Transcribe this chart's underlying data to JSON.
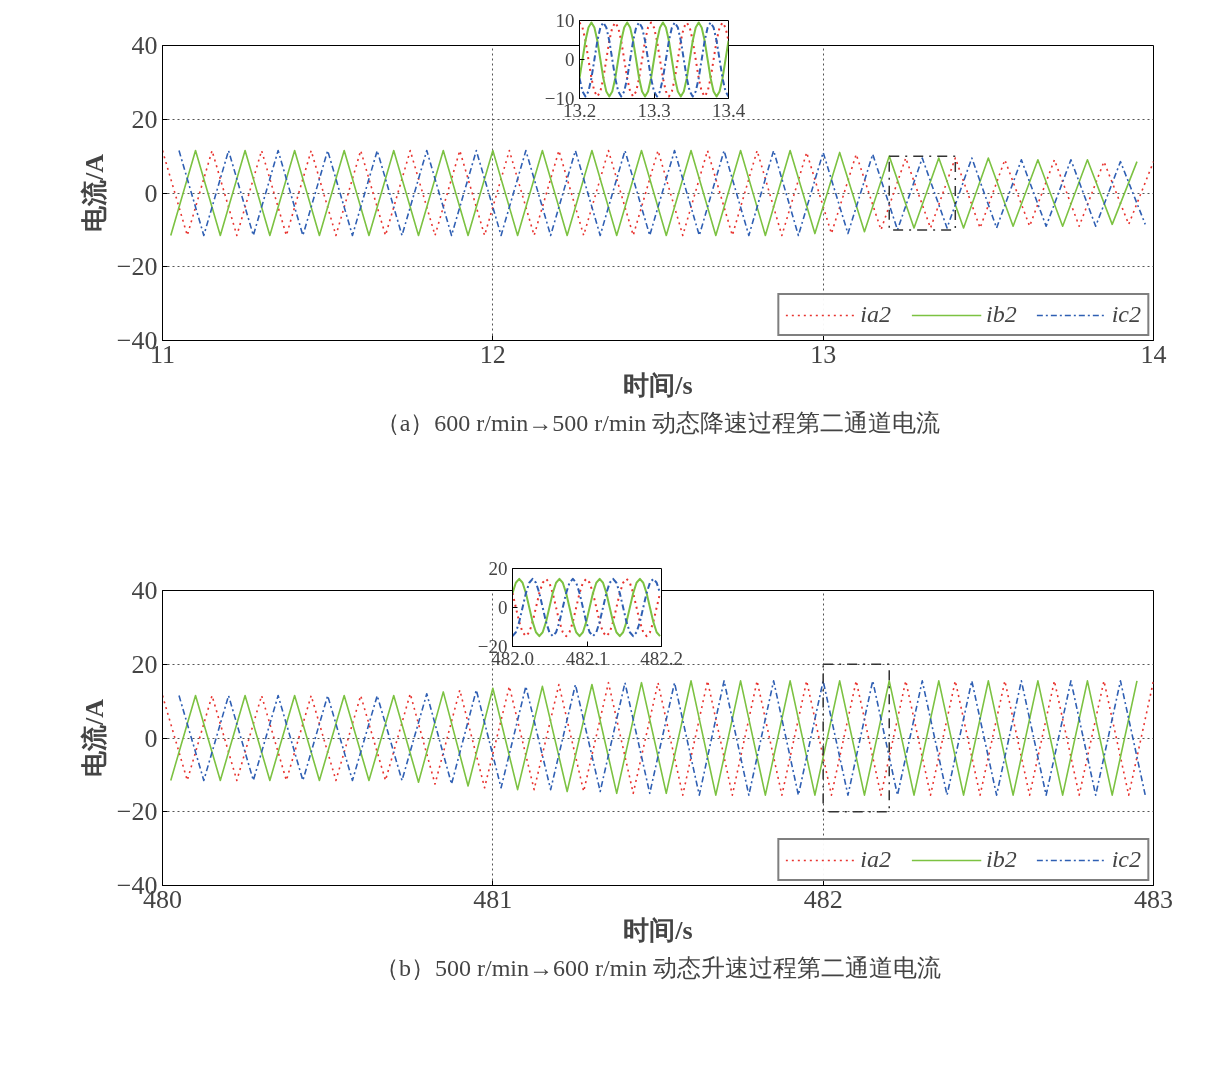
{
  "chart_data": [
    {
      "type": "line",
      "xlabel": "时间/s",
      "ylabel": "电流/A",
      "annotations": [
        "（a）600 r/min→500 r/min 动态降速过程第二通道电流"
      ],
      "xlim": [
        11,
        14
      ],
      "ylim": [
        -40,
        40
      ],
      "xticks": [
        11,
        12,
        13,
        14
      ],
      "yticks": [
        -40,
        -20,
        0,
        20,
        40
      ],
      "grid": true,
      "legend": "bottom right",
      "series": [
        {
          "name": "ia2",
          "color": "#e8332f",
          "line_style": "dotted",
          "x": [
            11.0,
            11.075,
            11.15,
            11.225,
            11.3,
            11.375,
            11.45,
            11.525,
            11.6,
            11.675,
            11.75,
            11.825,
            11.9,
            11.975,
            12.05,
            12.125,
            12.2,
            12.275,
            12.35,
            12.425,
            12.5,
            12.575,
            12.65,
            12.725,
            12.8,
            12.875,
            12.95,
            13.025,
            13.1,
            13.175,
            13.25,
            13.325,
            13.4,
            13.475,
            13.55,
            13.625,
            13.7,
            13.775,
            13.85,
            13.925,
            14.0
          ],
          "values": [
            11.5,
            -11.5,
            11.5,
            -11.5,
            11.5,
            -11.5,
            11.5,
            -11.5,
            11.5,
            -11.5,
            11.5,
            -11.5,
            11.5,
            -11.5,
            11.5,
            -11.5,
            11.5,
            -11.5,
            11.5,
            -11.5,
            11.5,
            -11.5,
            11.5,
            -11.5,
            11.5,
            -11.5,
            11,
            -11,
            10.5,
            -10,
            9.5,
            -9.5,
            9.5,
            -9.5,
            9,
            -9,
            9,
            -9,
            8.5,
            -8.5,
            8.5
          ]
        },
        {
          "name": "ib2",
          "color": "#7cc242",
          "line_style": "solid",
          "x": [
            11.025,
            11.1,
            11.175,
            11.25,
            11.325,
            11.4,
            11.475,
            11.55,
            11.625,
            11.7,
            11.775,
            11.85,
            11.925,
            12.0,
            12.075,
            12.15,
            12.225,
            12.3,
            12.375,
            12.45,
            12.525,
            12.6,
            12.675,
            12.75,
            12.825,
            12.9,
            12.975,
            13.05,
            13.125,
            13.2,
            13.275,
            13.35,
            13.425,
            13.5,
            13.575,
            13.65,
            13.725,
            13.8,
            13.875,
            13.95
          ],
          "values": [
            -11.5,
            11.5,
            -11.5,
            11.5,
            -11.5,
            11.5,
            -11.5,
            11.5,
            -11.5,
            11.5,
            -11.5,
            11.5,
            -11.5,
            11.5,
            -11.5,
            11.5,
            -11.5,
            11.5,
            -11.5,
            11.5,
            -11.5,
            11.5,
            -11.5,
            11.5,
            -11.5,
            11.5,
            -11,
            11,
            -10.5,
            10,
            -9.5,
            9.5,
            -9.5,
            9.5,
            -9,
            9,
            -9,
            9,
            -8.5,
            8.5
          ]
        },
        {
          "name": "ic2",
          "color": "#2f5fb3",
          "line_style": "dashed",
          "x": [
            11.05,
            11.125,
            11.2,
            11.275,
            11.35,
            11.425,
            11.5,
            11.575,
            11.65,
            11.725,
            11.8,
            11.875,
            11.95,
            12.025,
            12.1,
            12.175,
            12.25,
            12.325,
            12.4,
            12.475,
            12.55,
            12.625,
            12.7,
            12.775,
            12.85,
            12.925,
            13.0,
            13.075,
            13.15,
            13.225,
            13.3,
            13.375,
            13.45,
            13.525,
            13.6,
            13.675,
            13.75,
            13.825,
            13.9,
            13.975
          ],
          "values": [
            11.5,
            -11.5,
            11.5,
            -11.5,
            11.5,
            -11.5,
            11.5,
            -11.5,
            11.5,
            -11.5,
            11.5,
            -11.5,
            11.5,
            -11.5,
            11.5,
            -11.5,
            11.5,
            -11.5,
            11.5,
            -11.5,
            11.5,
            -11.5,
            11.5,
            -11.5,
            11.5,
            -11.5,
            11,
            -11,
            10.5,
            -10,
            9.5,
            -9.5,
            9.5,
            -9.5,
            9,
            -9,
            9,
            -9,
            8.5,
            -8.5
          ]
        }
      ]
    },
    {
      "type": "line",
      "xlim": [
        13.2,
        13.4
      ],
      "ylim": [
        -10,
        10
      ],
      "xticks": [
        13.2,
        13.3,
        13.4
      ],
      "yticks": [
        -10,
        0,
        10
      ],
      "x": [
        13.2,
        13.204,
        13.208,
        13.212,
        13.216,
        13.22,
        13.224,
        13.228,
        13.232,
        13.236,
        13.24,
        13.244,
        13.248,
        13.252,
        13.256,
        13.26,
        13.264,
        13.268,
        13.272,
        13.276,
        13.28,
        13.284,
        13.288,
        13.292,
        13.296,
        13.3,
        13.304,
        13.308,
        13.312,
        13.316,
        13.32,
        13.324,
        13.328,
        13.332,
        13.336,
        13.34,
        13.344,
        13.348,
        13.352,
        13.356,
        13.36,
        13.364,
        13.368,
        13.372,
        13.376,
        13.38,
        13.384,
        13.388,
        13.392,
        13.396,
        13.4
      ],
      "series": [
        {
          "color": "#e8332f",
          "line_style": "dotted",
          "values": [
            9.5,
            8.2,
            4.8,
            0,
            -4.8,
            -8.2,
            -9.5,
            -8.2,
            -4.8,
            0,
            4.8,
            8.2,
            9.5,
            8.2,
            4.8,
            0,
            -4.8,
            -8.2,
            -9.5,
            -8.2,
            -4.8,
            0,
            4.8,
            8.2,
            9.5,
            8.2,
            4.8,
            0,
            -4.8,
            -8.2,
            -9.5,
            -8.2,
            -4.8,
            0,
            4.8,
            8.2,
            9.5,
            8.2,
            4.8,
            0,
            -4.8,
            -8.2,
            -9.5,
            -8.2,
            -4.8,
            0,
            4.8,
            8.2,
            9.5,
            8.2,
            4.8
          ]
        },
        {
          "color": "#7cc242",
          "line_style": "solid",
          "values": [
            -4.8,
            0,
            4.8,
            8.2,
            9.5,
            8.2,
            4.8,
            0,
            -4.8,
            -8.2,
            -9.5,
            -8.2,
            -4.8,
            0,
            4.8,
            8.2,
            9.5,
            8.2,
            4.8,
            0,
            -4.8,
            -8.2,
            -9.5,
            -8.2,
            -4.8,
            0,
            4.8,
            8.2,
            9.5,
            8.2,
            4.8,
            0,
            -4.8,
            -8.2,
            -9.5,
            -8.2,
            -4.8,
            0,
            4.8,
            8.2,
            9.5,
            8.2,
            4.8,
            0,
            -4.8,
            -8.2,
            -9.5,
            -8.2,
            -4.8,
            0,
            4.8
          ]
        },
        {
          "color": "#2f5fb3",
          "line_style": "dashed",
          "values": [
            -4.8,
            -8.2,
            -9.5,
            -8.2,
            -4.8,
            0,
            4.8,
            8.2,
            9.5,
            8.2,
            4.8,
            0,
            -4.8,
            -8.2,
            -9.5,
            -8.2,
            -4.8,
            0,
            4.8,
            8.2,
            9.5,
            8.2,
            4.8,
            0,
            -4.8,
            -8.2,
            -9.5,
            -8.2,
            -4.8,
            0,
            4.8,
            8.2,
            9.5,
            8.2,
            4.8,
            0,
            -4.8,
            -8.2,
            -9.5,
            -8.2,
            -4.8,
            0,
            4.8,
            8.2,
            9.5,
            8.2,
            4.8,
            0,
            -4.8,
            -8.2,
            -9.5
          ]
        }
      ]
    },
    {
      "type": "line",
      "xlabel": "时间/s",
      "ylabel": "电流/A",
      "annotations": [
        "（b）500 r/min→600 r/min 动态升速过程第二通道电流"
      ],
      "xlim": [
        480,
        483
      ],
      "ylim": [
        -40,
        40
      ],
      "xticks": [
        480,
        481,
        482,
        483
      ],
      "yticks": [
        -40,
        -20,
        0,
        20,
        40
      ],
      "grid": true,
      "legend": "bottom right",
      "series": [
        {
          "name": "ia2",
          "color": "#e8332f",
          "line_style": "dotted",
          "x": [
            480.0,
            480.075,
            480.15,
            480.225,
            480.3,
            480.375,
            480.45,
            480.525,
            480.6,
            480.675,
            480.75,
            480.825,
            480.9,
            480.975,
            481.05,
            481.125,
            481.2,
            481.275,
            481.35,
            481.425,
            481.5,
            481.575,
            481.65,
            481.725,
            481.8,
            481.875,
            481.95,
            482.025,
            482.1,
            482.175,
            482.25,
            482.325,
            482.4,
            482.475,
            482.55,
            482.625,
            482.7,
            482.775,
            482.85,
            482.925,
            483.0
          ],
          "values": [
            11.5,
            -11.5,
            11.5,
            -11.5,
            11.5,
            -11.5,
            11.5,
            -11.5,
            11.5,
            -11.5,
            12,
            -12.5,
            13,
            -13.5,
            14,
            -14,
            14.5,
            -14.5,
            15,
            -15,
            15,
            -15.5,
            15.5,
            -15.5,
            15.5,
            -15.5,
            15.5,
            -15.5,
            15.5,
            -15.5,
            15.5,
            -15.5,
            15.5,
            -15.5,
            15.5,
            -15.5,
            15.5,
            -15.5,
            15.5,
            -15.5,
            15.5
          ]
        },
        {
          "name": "ib2",
          "color": "#7cc242",
          "line_style": "solid",
          "x": [
            480.025,
            480.1,
            480.175,
            480.25,
            480.325,
            480.4,
            480.475,
            480.55,
            480.625,
            480.7,
            480.775,
            480.85,
            480.925,
            481.0,
            481.075,
            481.15,
            481.225,
            481.3,
            481.375,
            481.45,
            481.525,
            481.6,
            481.675,
            481.75,
            481.825,
            481.9,
            481.975,
            482.05,
            482.125,
            482.2,
            482.275,
            482.35,
            482.425,
            482.5,
            482.575,
            482.65,
            482.725,
            482.8,
            482.875,
            482.95
          ],
          "values": [
            -11.5,
            11.5,
            -11.5,
            11.5,
            -11.5,
            11.5,
            -11.5,
            11.5,
            -11.5,
            11.5,
            -12,
            12.5,
            -13,
            13.5,
            -14,
            14,
            -14.5,
            14.5,
            -15,
            15,
            -15,
            15.5,
            -15.5,
            15.5,
            -15.5,
            15.5,
            -15.5,
            15.5,
            -15.5,
            15.5,
            -15.5,
            15.5,
            -15.5,
            15.5,
            -15.5,
            15.5,
            -15.5,
            15.5,
            -15.5,
            15.5
          ]
        },
        {
          "name": "ic2",
          "color": "#2f5fb3",
          "line_style": "dashed",
          "x": [
            480.05,
            480.125,
            480.2,
            480.275,
            480.35,
            480.425,
            480.5,
            480.575,
            480.65,
            480.725,
            480.8,
            480.875,
            480.95,
            481.025,
            481.1,
            481.175,
            481.25,
            481.325,
            481.4,
            481.475,
            481.55,
            481.625,
            481.7,
            481.775,
            481.85,
            481.925,
            482.0,
            482.075,
            482.15,
            482.225,
            482.3,
            482.375,
            482.45,
            482.525,
            482.6,
            482.675,
            482.75,
            482.825,
            482.9,
            482.975
          ],
          "values": [
            11.5,
            -11.5,
            11.5,
            -11.5,
            11.5,
            -11.5,
            11.5,
            -11.5,
            11.5,
            -11.5,
            12,
            -12.5,
            13,
            -13.5,
            14,
            -14,
            14.5,
            -14.5,
            15,
            -15,
            15,
            -15.5,
            15.5,
            -15.5,
            15.5,
            -15.5,
            15.5,
            -15.5,
            15.5,
            -15.5,
            15.5,
            -15.5,
            15.5,
            -15.5,
            15.5,
            -15.5,
            15.5,
            -15.5,
            15.5,
            -15.5
          ]
        }
      ]
    },
    {
      "type": "line",
      "xlim": [
        482.0,
        482.2
      ],
      "ylim": [
        -20,
        20
      ],
      "xticks": [
        {
          "value": 482.0,
          "label": "482.0"
        },
        482.1,
        482.2
      ],
      "yticks": [
        -20,
        0,
        20
      ],
      "x": [
        482.0,
        482.0045,
        482.009,
        482.0135,
        482.018,
        482.0225,
        482.027,
        482.0315,
        482.036,
        482.0405,
        482.045,
        482.0495,
        482.054,
        482.0585,
        482.063,
        482.0675,
        482.072,
        482.0765,
        482.081,
        482.0855,
        482.09,
        482.0945,
        482.099,
        482.1035,
        482.108,
        482.1125,
        482.117,
        482.1215,
        482.126,
        482.1305,
        482.135,
        482.1395,
        482.144,
        482.1485,
        482.153,
        482.1575,
        482.162,
        482.1665,
        482.171,
        482.1755,
        482.18,
        482.1845,
        482.189,
        482.1935,
        482.198
      ],
      "series": [
        {
          "color": "#e8332f",
          "line_style": "dotted",
          "values": [
            7.4,
            0,
            -7.4,
            -12.7,
            -14.7,
            -12.7,
            -7.4,
            0,
            7.4,
            12.7,
            14.7,
            12.7,
            7.4,
            0,
            -7.4,
            -12.7,
            -14.7,
            -12.7,
            -7.4,
            0,
            7.4,
            12.7,
            14.7,
            12.7,
            7.4,
            0,
            -7.4,
            -12.7,
            -14.7,
            -12.7,
            -7.4,
            0,
            7.4,
            12.7,
            14.7,
            12.7,
            7.4,
            0,
            -7.4,
            -12.7,
            -14.7,
            -12.7,
            -7.4,
            0,
            7.4
          ]
        },
        {
          "color": "#7cc242",
          "line_style": "solid",
          "values": [
            7.4,
            12.7,
            14.7,
            12.7,
            7.4,
            0,
            -7.4,
            -12.7,
            -14.7,
            -12.7,
            -7.4,
            0,
            7.4,
            12.7,
            14.7,
            12.7,
            7.4,
            0,
            -7.4,
            -12.7,
            -14.7,
            -12.7,
            -7.4,
            0,
            7.4,
            12.7,
            14.7,
            12.7,
            7.4,
            0,
            -7.4,
            -12.7,
            -14.7,
            -12.7,
            -7.4,
            0,
            7.4,
            12.7,
            14.7,
            12.7,
            7.4,
            0,
            -7.4,
            -12.7,
            -14.7
          ]
        },
        {
          "color": "#2f5fb3",
          "line_style": "dashed",
          "values": [
            -14.7,
            -12.7,
            -7.4,
            0,
            7.4,
            12.7,
            14.7,
            12.7,
            7.4,
            0,
            -7.4,
            -12.7,
            -14.7,
            -12.7,
            -7.4,
            0,
            7.4,
            12.7,
            14.7,
            12.7,
            7.4,
            0,
            -7.4,
            -12.7,
            -14.7,
            -12.7,
            -7.4,
            0,
            7.4,
            12.7,
            14.7,
            12.7,
            7.4,
            0,
            -7.4,
            -12.7,
            -14.7,
            -12.7,
            -7.4,
            0,
            7.4,
            12.7,
            14.7,
            12.7,
            7.4
          ]
        }
      ]
    }
  ]
}
